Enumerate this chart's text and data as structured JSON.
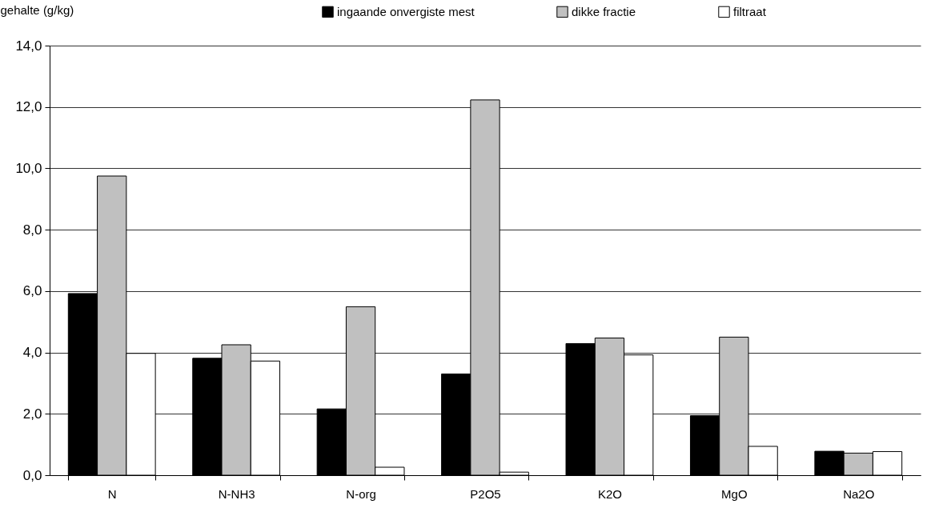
{
  "chart_data": {
    "type": "bar",
    "ylabel": "gehalte (g/kg)",
    "categories": [
      "N",
      "N-NH3",
      "N-org",
      "P2O5",
      "K2O",
      "MgO",
      "Na2O"
    ],
    "series": [
      {
        "name": "ingaande onvergiste mest",
        "color": "#000000",
        "values": [
          5.92,
          3.81,
          2.16,
          3.3,
          4.29,
          1.94,
          0.78
        ]
      },
      {
        "name": "dikke fractie",
        "color": "#c0c0c0",
        "values": [
          9.75,
          4.25,
          5.49,
          12.23,
          4.47,
          4.5,
          0.72
        ]
      },
      {
        "name": "filtraat",
        "color": "#ffffff",
        "values": [
          3.97,
          3.72,
          0.26,
          0.1,
          3.92,
          0.94,
          0.77
        ]
      }
    ],
    "ylim": [
      0,
      14
    ],
    "yticks": [
      {
        "value": 0,
        "label": "0,0"
      },
      {
        "value": 2,
        "label": "2,0"
      },
      {
        "value": 4,
        "label": "4,0"
      },
      {
        "value": 6,
        "label": "6,0"
      },
      {
        "value": 8,
        "label": "8,0"
      },
      {
        "value": 10,
        "label": "10,0"
      },
      {
        "value": 12,
        "label": "12,0"
      },
      {
        "value": 14,
        "label": "14,0"
      }
    ],
    "grid": "y",
    "legend": "top"
  }
}
